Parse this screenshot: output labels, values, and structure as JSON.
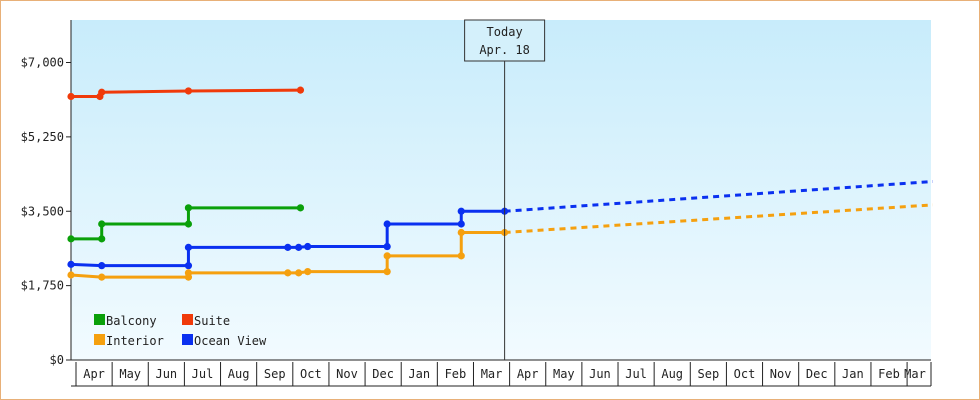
{
  "chart_data": {
    "type": "line",
    "title": "",
    "xlabel": "",
    "ylabel": "",
    "ylim": [
      0,
      8000
    ],
    "y_ticks": [
      {
        "value": 0,
        "label": "$0"
      },
      {
        "value": 1750,
        "label": "$1,750"
      },
      {
        "value": 3500,
        "label": "$3,500"
      },
      {
        "value": 5250,
        "label": "$5,250"
      },
      {
        "value": 7000,
        "label": "$7,000"
      }
    ],
    "month_labels": [
      "Apr",
      "May",
      "Jun",
      "Jul",
      "Aug",
      "Sep",
      "Oct",
      "Nov",
      "Dec",
      "Jan",
      "Feb",
      "Mar",
      "Apr",
      "May",
      "Jun",
      "Jul",
      "Aug",
      "Sep",
      "Oct",
      "Nov",
      "Dec",
      "Jan",
      "Feb",
      "Mar"
    ],
    "today": {
      "line1": "Today",
      "line2": "Apr. 18",
      "month_index": 12.0
    },
    "legend": {
      "position": "bottom-left",
      "items": [
        {
          "key": "balcony",
          "label": "Balcony"
        },
        {
          "key": "suite",
          "label": "Suite"
        },
        {
          "key": "interior",
          "label": "Interior"
        },
        {
          "key": "ocean_view",
          "label": "Ocean View"
        }
      ]
    },
    "series": [
      {
        "key": "suite",
        "name": "Suite",
        "color": "#f03a0a",
        "points": [
          [
            0,
            6200
          ],
          [
            0.8,
            6200
          ],
          [
            0.85,
            6300
          ],
          [
            3.25,
            6330
          ],
          [
            6.35,
            6350
          ]
        ]
      },
      {
        "key": "balcony",
        "name": "Balcony",
        "color": "#0aa00a",
        "points": [
          [
            0,
            2850
          ],
          [
            0.85,
            2850
          ],
          [
            0.85,
            3200
          ],
          [
            3.25,
            3200
          ],
          [
            3.25,
            3580
          ],
          [
            6.35,
            3580
          ]
        ]
      },
      {
        "key": "ocean_view",
        "name": "Ocean View",
        "color": "#0a30f0",
        "points": [
          [
            0,
            2250
          ],
          [
            0.85,
            2220
          ],
          [
            3.25,
            2220
          ],
          [
            3.25,
            2650
          ],
          [
            6.0,
            2650
          ],
          [
            6.3,
            2650
          ],
          [
            6.55,
            2670
          ],
          [
            8.75,
            2670
          ],
          [
            8.75,
            3200
          ],
          [
            10.8,
            3200
          ],
          [
            10.8,
            3500
          ],
          [
            12.0,
            3500
          ]
        ],
        "projection": [
          [
            12.0,
            3500
          ],
          [
            23.85,
            4200
          ]
        ]
      },
      {
        "key": "interior",
        "name": "Interior",
        "color": "#f5a00f",
        "points": [
          [
            0,
            2000
          ],
          [
            0.85,
            1950
          ],
          [
            3.25,
            1950
          ],
          [
            3.25,
            2050
          ],
          [
            6.0,
            2050
          ],
          [
            6.3,
            2050
          ],
          [
            6.55,
            2080
          ],
          [
            8.75,
            2080
          ],
          [
            8.75,
            2450
          ],
          [
            10.8,
            2450
          ],
          [
            10.8,
            3000
          ],
          [
            12.0,
            3000
          ]
        ],
        "projection": [
          [
            12.0,
            3000
          ],
          [
            23.85,
            3650
          ]
        ]
      }
    ]
  }
}
